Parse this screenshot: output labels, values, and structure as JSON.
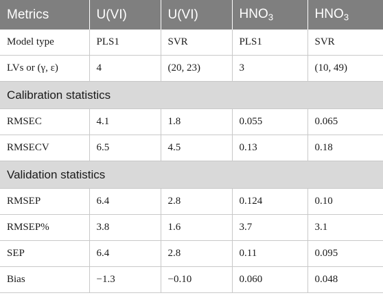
{
  "header": {
    "metrics": "Metrics",
    "col1": "U(VI)",
    "col2": "U(VI)",
    "col3_base": "HNO",
    "col3_sub": "3",
    "col4_base": "HNO",
    "col4_sub": "3"
  },
  "rows": {
    "model_type": [
      "Model type",
      "PLS1",
      "SVR",
      "PLS1",
      "SVR"
    ],
    "lvs": [
      "LVs or (γ, ε)",
      "4",
      "(20, 23)",
      "3",
      "(10, 49)"
    ]
  },
  "calibration": {
    "title": "Calibration statistics",
    "rmsec": [
      "RMSEC",
      "4.1",
      "1.8",
      "0.055",
      "0.065"
    ],
    "rmsecv": [
      "RMSECV",
      "6.5",
      "4.5",
      "0.13",
      "0.18"
    ]
  },
  "validation": {
    "title": "Validation statistics",
    "rmsep": [
      "RMSEP",
      "6.4",
      "2.8",
      "0.124",
      "0.10"
    ],
    "rmsep_pct": [
      "RMSEP%",
      "3.8",
      "1.6",
      "3.7",
      "3.1"
    ],
    "sep": [
      "SEP",
      "6.4",
      "2.8",
      "0.11",
      "0.095"
    ],
    "bias": [
      "Bias",
      "−1.3",
      "−0.10",
      "0.060",
      "0.048"
    ]
  }
}
